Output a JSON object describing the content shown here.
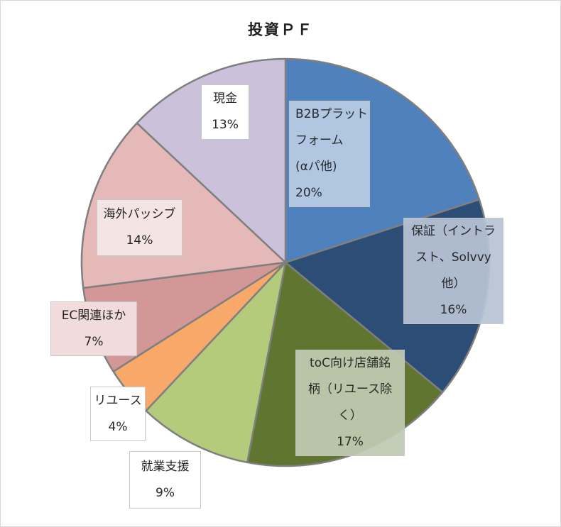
{
  "chart_data": {
    "type": "pie",
    "title": "投資ＰＦ",
    "slices": [
      {
        "label": "B2Bプラット\nフォーム\n(αパ他)",
        "pct_label": "20%",
        "value": 20,
        "color": "#4f81bd"
      },
      {
        "label": "保証（イントラ\nスト、Solvvy\n他）",
        "pct_label": "16%",
        "value": 16,
        "color": "#2c4d75"
      },
      {
        "label": "toC向け店舗銘\n柄（リユース除\nく）",
        "pct_label": "17%",
        "value": 17,
        "color": "#5f7530"
      },
      {
        "label": "就業支援",
        "pct_label": "9%",
        "value": 9,
        "color": "#b3cb7a"
      },
      {
        "label": "リユース",
        "pct_label": "4%",
        "value": 4,
        "color": "#f8a96a"
      },
      {
        "label": "EC関連ほか",
        "pct_label": "7%",
        "value": 7,
        "color": "#d49797"
      },
      {
        "label": "海外パッシブ",
        "pct_label": "14%",
        "value": 14,
        "color": "#e5b9b8"
      },
      {
        "label": "現金",
        "pct_label": "13%",
        "value": 13,
        "color": "#ccc1da"
      }
    ],
    "slice_border_color": "#7f7f7f",
    "legend": "none",
    "label_box_colors": [
      "#b8cce4",
      "#b8c4d6",
      "#c0cab2",
      "#ffffff",
      "#ffffff",
      "#f2dcdb",
      "#f5e4e4",
      "#ffffff"
    ]
  }
}
